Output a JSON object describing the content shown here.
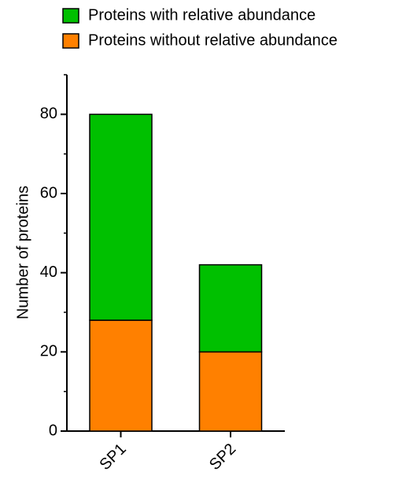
{
  "chart_data": {
    "type": "stacked-bar",
    "y_label": "Number of proteins",
    "categories": [
      "SP1",
      "SP2"
    ],
    "series": [
      {
        "name": "Proteins with relative abundance",
        "color": "#00c000",
        "values": [
          52,
          22
        ]
      },
      {
        "name": "Proteins without relative abundance",
        "color": "#ff8000",
        "values": [
          28,
          20
        ]
      }
    ],
    "ylim": [
      0,
      90
    ],
    "yticks": [
      0,
      20,
      40,
      60,
      80
    ],
    "yminorticks": [
      10,
      30,
      50,
      70,
      90
    ]
  }
}
